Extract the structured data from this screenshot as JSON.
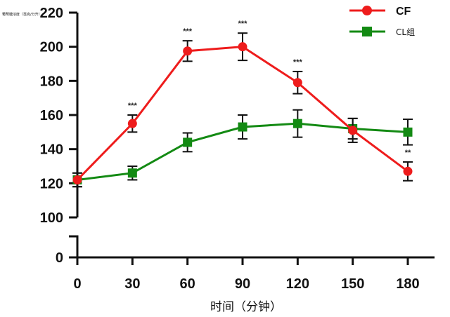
{
  "colors": {
    "cf": "#ee1c1c",
    "cl": "#138a13",
    "axis": "#111111"
  },
  "chart_data": {
    "type": "line",
    "title": "",
    "xlabel": "时间（分钟）",
    "ylabel": "葡萄糖浓度（毫克/分升）",
    "x": [
      0,
      30,
      60,
      90,
      120,
      150,
      180
    ],
    "x_tick_labels": [
      "0",
      "30",
      "60",
      "90",
      "120",
      "150",
      "180"
    ],
    "y_ticks": [
      0,
      100,
      120,
      140,
      160,
      180,
      200,
      220
    ],
    "y_tick_labels": [
      "0",
      "100",
      "120",
      "140",
      "160",
      "180",
      "200",
      "220"
    ],
    "ylim": [
      0,
      220
    ],
    "y_axis_break": [
      0,
      100
    ],
    "grid": false,
    "legend_position": "top-right",
    "series": [
      {
        "name": "CF",
        "marker": "circle",
        "color": "#ee1c1c",
        "values": [
          122,
          155,
          197.5,
          200,
          179,
          151,
          127
        ],
        "errors": [
          4,
          5,
          6,
          8,
          6.5,
          7,
          5.5
        ]
      },
      {
        "name": "CL组",
        "marker": "square",
        "color": "#138a13",
        "values": [
          122,
          126,
          144,
          153,
          155,
          152,
          150
        ],
        "errors": [
          4,
          4,
          5.5,
          7,
          8,
          6,
          7.5
        ]
      }
    ],
    "annotations": [
      {
        "x": 30,
        "text": "***"
      },
      {
        "x": 60,
        "text": "***"
      },
      {
        "x": 90,
        "text": "***"
      },
      {
        "x": 120,
        "text": "***"
      },
      {
        "x": 180,
        "text": "**"
      }
    ]
  }
}
